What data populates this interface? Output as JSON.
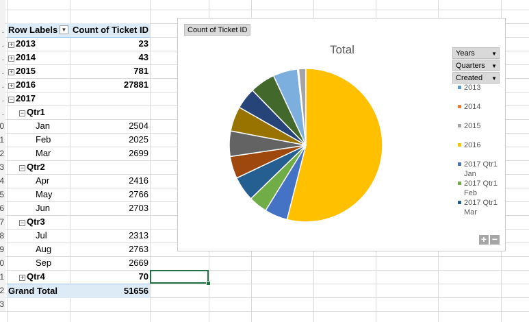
{
  "pivot": {
    "header_row_labels": "Row Labels",
    "header_count": "Count of Ticket ID",
    "rows": [
      {
        "label": "2013",
        "value": "23",
        "level": 0,
        "toggle": "+",
        "bold": true
      },
      {
        "label": "2014",
        "value": "43",
        "level": 0,
        "toggle": "+",
        "bold": true
      },
      {
        "label": "2015",
        "value": "781",
        "level": 0,
        "toggle": "+",
        "bold": true
      },
      {
        "label": "2016",
        "value": "27881",
        "level": 0,
        "toggle": "+",
        "bold": true
      },
      {
        "label": "2017",
        "value": "",
        "level": 0,
        "toggle": "−",
        "bold": true
      },
      {
        "label": "Qtr1",
        "value": "",
        "level": 1,
        "toggle": "−",
        "bold": true
      },
      {
        "label": "Jan",
        "value": "2504",
        "level": 2,
        "toggle": "",
        "bold": false
      },
      {
        "label": "Feb",
        "value": "2025",
        "level": 2,
        "toggle": "",
        "bold": false
      },
      {
        "label": "Mar",
        "value": "2699",
        "level": 2,
        "toggle": "",
        "bold": false
      },
      {
        "label": "Qtr2",
        "value": "",
        "level": 1,
        "toggle": "−",
        "bold": true
      },
      {
        "label": "Apr",
        "value": "2416",
        "level": 2,
        "toggle": "",
        "bold": false
      },
      {
        "label": "May",
        "value": "2766",
        "level": 2,
        "toggle": "",
        "bold": false
      },
      {
        "label": "Jun",
        "value": "2703",
        "level": 2,
        "toggle": "",
        "bold": false
      },
      {
        "label": "Qtr3",
        "value": "",
        "level": 1,
        "toggle": "−",
        "bold": true
      },
      {
        "label": "Jul",
        "value": "2313",
        "level": 2,
        "toggle": "",
        "bold": false
      },
      {
        "label": "Aug",
        "value": "2763",
        "level": 2,
        "toggle": "",
        "bold": false
      },
      {
        "label": "Sep",
        "value": "2669",
        "level": 2,
        "toggle": "",
        "bold": false
      },
      {
        "label": "Qtr4",
        "value": "70",
        "level": 1,
        "toggle": "+",
        "bold": true
      }
    ],
    "grand_total_label": "Grand Total",
    "grand_total_value": "51656"
  },
  "row_numbers": [
    "",
    "",
    ".",
    ".",
    ".",
    ".",
    ".",
    ".",
    ".",
    "0",
    "1",
    "2",
    "3",
    "4",
    "5",
    "6",
    "7",
    "8",
    "9",
    "0",
    "1",
    "2",
    "3"
  ],
  "chart": {
    "value_field_button": "Count of Ticket ID",
    "field_buttons": [
      "Years",
      "Quarters",
      "Created"
    ],
    "zoom_in": "+",
    "zoom_out": "−"
  },
  "chart_data": {
    "type": "pie",
    "title": "Total",
    "slices": [
      {
        "label": "2013",
        "value": 23,
        "color": "#5b9bd5"
      },
      {
        "label": "2014",
        "value": 43,
        "color": "#ed7d31"
      },
      {
        "label": "2015",
        "value": 781,
        "color": "#a5a5a5"
      },
      {
        "label": "2016",
        "value": 27881,
        "color": "#ffc000"
      },
      {
        "label": "2017 Qtr1 Jan",
        "value": 2504,
        "color": "#4472c4"
      },
      {
        "label": "2017 Qtr1 Feb",
        "value": 2025,
        "color": "#70ad47"
      },
      {
        "label": "2017 Qtr1 Mar",
        "value": 2699,
        "color": "#255e91"
      },
      {
        "label": "2017 Qtr2 Apr",
        "value": 2416,
        "color": "#9e480e"
      },
      {
        "label": "2017 Qtr2 May",
        "value": 2766,
        "color": "#636363"
      },
      {
        "label": "2017 Qtr2 Jun",
        "value": 2703,
        "color": "#997300"
      },
      {
        "label": "2017 Qtr3 Jul",
        "value": 2313,
        "color": "#264478"
      },
      {
        "label": "2017 Qtr3 Aug",
        "value": 2763,
        "color": "#43682b"
      },
      {
        "label": "2017 Qtr3 Sep",
        "value": 2669,
        "color": "#7cafdd"
      },
      {
        "label": "2017 Qtr4",
        "value": 70,
        "color": "#b0b0b0"
      }
    ],
    "legend_visible": [
      {
        "text": "2013",
        "color": "#5b9bd5"
      },
      {
        "text": "2014",
        "color": "#ed7d31"
      },
      {
        "text": "2015",
        "color": "#a5a5a5"
      },
      {
        "text": "2016",
        "color": "#ffc000"
      },
      {
        "text": "2017 Qtr1 Jan",
        "color": "#4472c4"
      },
      {
        "text": "2017 Qtr1 Feb",
        "color": "#70ad47"
      },
      {
        "text": "2017 Qtr1 Mar",
        "color": "#255e91"
      }
    ],
    "legend_placement": "right"
  }
}
